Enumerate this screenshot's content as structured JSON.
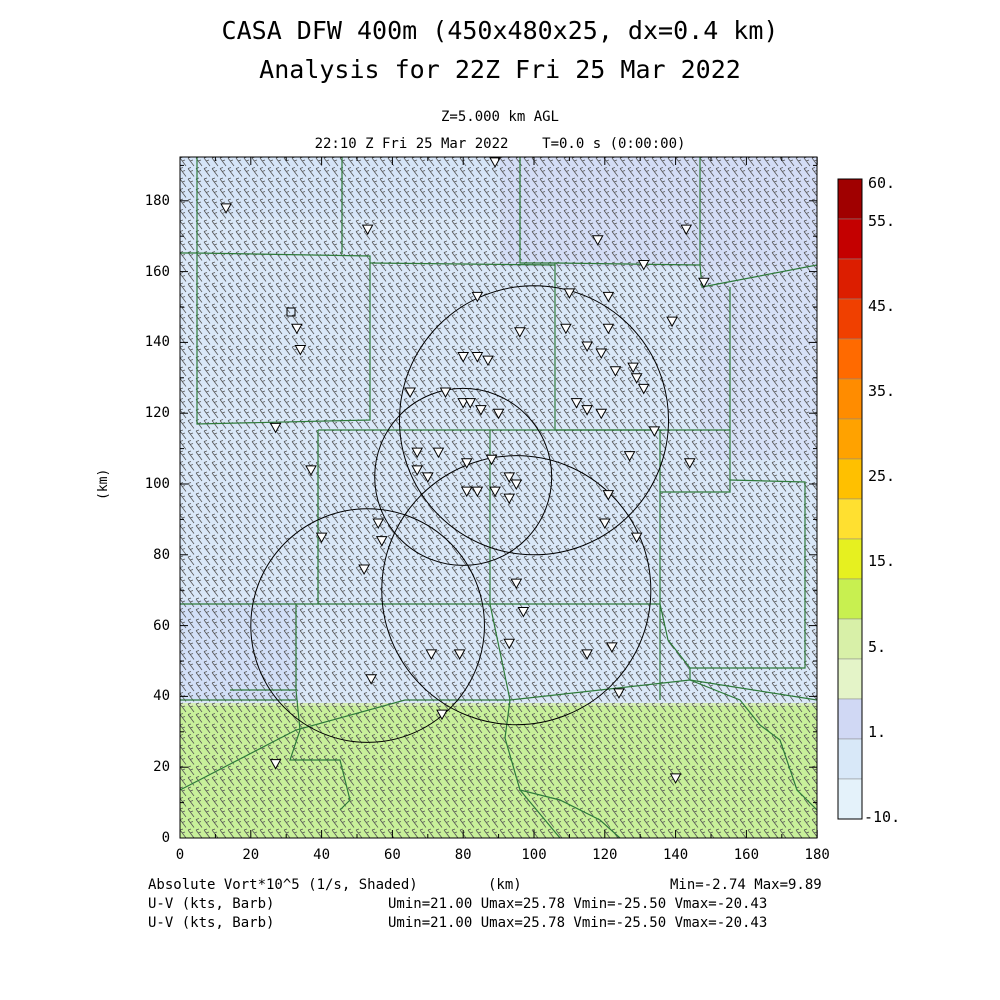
{
  "title_line1": "CASA DFW 400m (450x480x25, dx=0.4 km)",
  "title_line2": "Analysis for 22Z Fri 25 Mar 2022",
  "level_label": "Z=5.000 km AGL",
  "time_label": "22:10 Z Fri 25 Mar 2022    T=0.0 s (0:00:00)",
  "x_axis": {
    "label": "(km)",
    "ticks": [
      "0",
      "20",
      "40",
      "60",
      "80",
      "100",
      "120",
      "140",
      "160",
      "180"
    ]
  },
  "y_axis": {
    "label": "(km)",
    "ticks": [
      "0",
      "20",
      "40",
      "60",
      "80",
      "100",
      "120",
      "140",
      "160",
      "180"
    ]
  },
  "colorbar": {
    "labels": [
      "60.",
      "55.",
      "45.",
      "35.",
      "25.",
      "15.",
      "5.",
      "1.",
      "-10."
    ],
    "colors": [
      "#a00000",
      "#c40000",
      "#dc1e00",
      "#f04000",
      "#ff6a00",
      "#ff8c00",
      "#ffa200",
      "#ffc000",
      "#ffe030",
      "#e6f020",
      "#c8f050",
      "#d8f0a8",
      "#e4f4c8",
      "#d0d8f4",
      "#d8e8f8",
      "#e4f2fa"
    ]
  },
  "footer": {
    "field_label": "Absolute Vort*10^5 (1/s, Shaded)",
    "xunit": "(km)",
    "minmax": "Min=-2.74 Max=9.89",
    "barb_label_1": "U-V (kts, Barb)",
    "barb_stats_1": "Umin=21.00 Umax=25.78 Vmin=-25.50 Vmax=-20.43",
    "barb_label_2": "U-V (kts, Barb)",
    "barb_stats_2": "Umin=21.00 Umax=25.78 Vmin=-25.50 Vmax=-20.43"
  },
  "map_data": {
    "domain_km": [
      180,
      192
    ],
    "radars_km": [
      {
        "x": 100,
        "y": 118,
        "r": 38
      },
      {
        "x": 80,
        "y": 102,
        "r": 25
      },
      {
        "x": 95,
        "y": 70,
        "r": 38
      },
      {
        "x": 53,
        "y": 60,
        "r": 33
      }
    ],
    "stations_km": [
      [
        13,
        178
      ],
      [
        53,
        172
      ],
      [
        89,
        191
      ],
      [
        118,
        169
      ],
      [
        143,
        172
      ],
      [
        131,
        162
      ],
      [
        148,
        157
      ],
      [
        84,
        153
      ],
      [
        110,
        154
      ],
      [
        121,
        153
      ],
      [
        33,
        144
      ],
      [
        34,
        138
      ],
      [
        96,
        143
      ],
      [
        109,
        144
      ],
      [
        121,
        144
      ],
      [
        115,
        139
      ],
      [
        119,
        137
      ],
      [
        139,
        146
      ],
      [
        80,
        136
      ],
      [
        84,
        136
      ],
      [
        87,
        135
      ],
      [
        128,
        133
      ],
      [
        123,
        132
      ],
      [
        129,
        130
      ],
      [
        131,
        127
      ],
      [
        65,
        126
      ],
      [
        75,
        126
      ],
      [
        80,
        123
      ],
      [
        82,
        123
      ],
      [
        85,
        121
      ],
      [
        90,
        120
      ],
      [
        112,
        123
      ],
      [
        115,
        121
      ],
      [
        119,
        120
      ],
      [
        27,
        116
      ],
      [
        134,
        115
      ],
      [
        67,
        109
      ],
      [
        73,
        109
      ],
      [
        81,
        106
      ],
      [
        88,
        107
      ],
      [
        67,
        104
      ],
      [
        70,
        102
      ],
      [
        93,
        102
      ],
      [
        95,
        100
      ],
      [
        81,
        98
      ],
      [
        84,
        98
      ],
      [
        89,
        98
      ],
      [
        121,
        97
      ],
      [
        120,
        89
      ],
      [
        129,
        85
      ],
      [
        93,
        96
      ],
      [
        37,
        104
      ],
      [
        56,
        89
      ],
      [
        57,
        84
      ],
      [
        40,
        85
      ],
      [
        127,
        108
      ],
      [
        144,
        106
      ],
      [
        52,
        76
      ],
      [
        95,
        72
      ],
      [
        97,
        64
      ],
      [
        79,
        52
      ],
      [
        71,
        52
      ],
      [
        115,
        52
      ],
      [
        122,
        54
      ],
      [
        93,
        55
      ],
      [
        54,
        45
      ],
      [
        124,
        41
      ],
      [
        74,
        35
      ],
      [
        27,
        21
      ],
      [
        140,
        17
      ]
    ]
  }
}
